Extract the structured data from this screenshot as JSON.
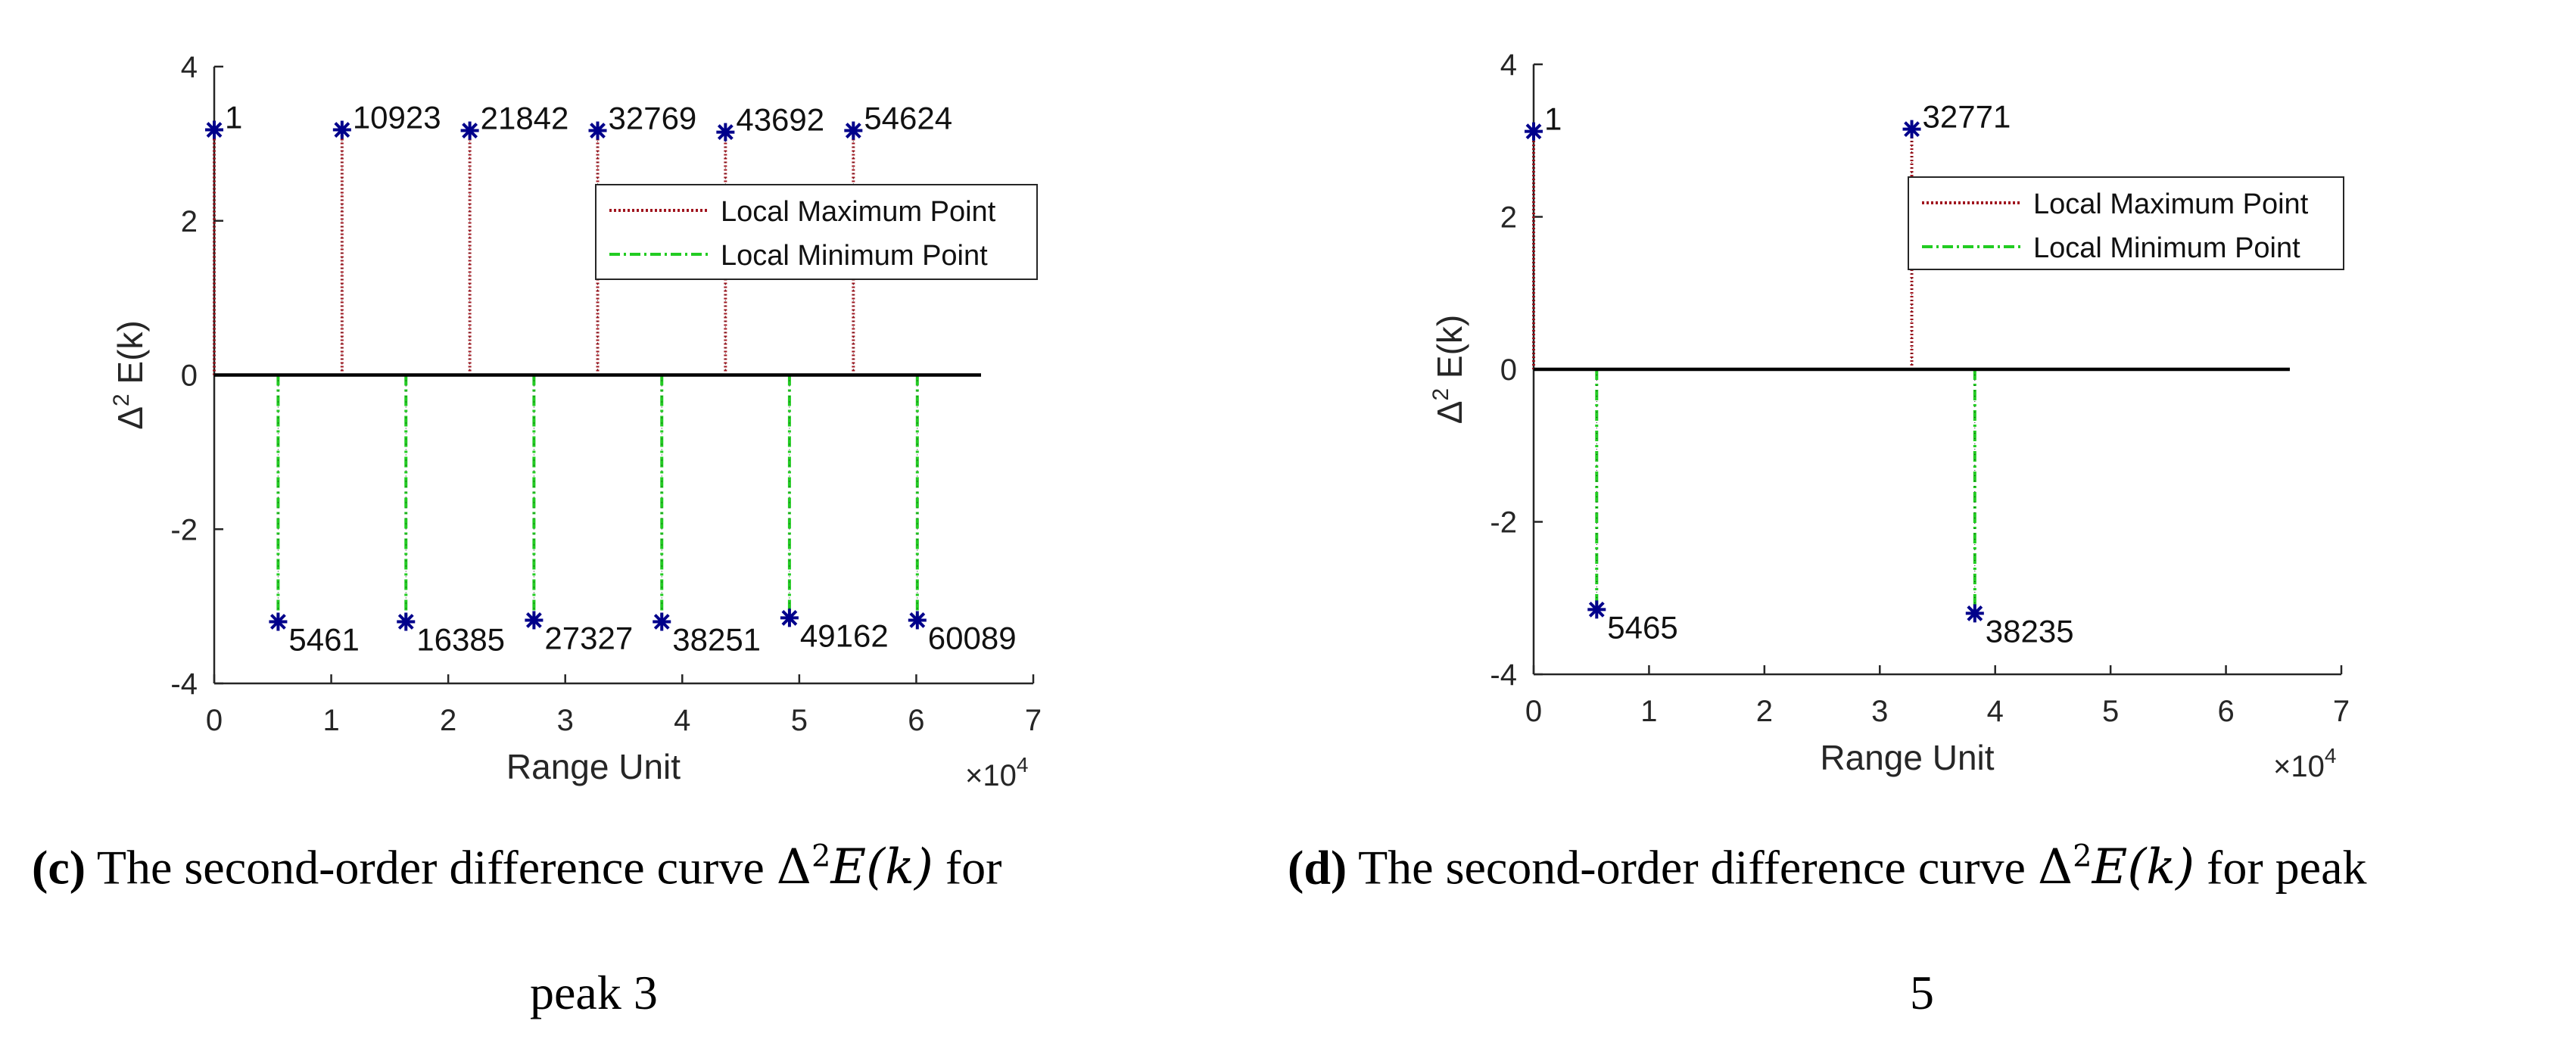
{
  "figures": [
    {
      "id": "c",
      "caption": {
        "letter": "(c)",
        "text": " The second-order difference curve ",
        "math_symbol": "Δ",
        "math_exp": "2",
        "math_func": "E(k)",
        "suffix_line1": " for",
        "line2": "peak 3"
      }
    },
    {
      "id": "d",
      "caption": {
        "letter": "(d)",
        "text": " The second-order difference curve ",
        "math_symbol": "Δ",
        "math_exp": "2",
        "math_func": "E(k)",
        "suffix_line1": " for peak",
        "line2": "5"
      }
    }
  ],
  "chart_data": [
    {
      "type": "stem",
      "xlabel": "Range Unit",
      "ylabel_symbol": "Δ",
      "ylabel_exp": "2",
      "ylabel_text": "E(k)",
      "x_multiplier": "×10",
      "x_multiplier_exp": "4",
      "xlim": [
        0,
        70000
      ],
      "ylim": [
        -4,
        4
      ],
      "x_ticks": [
        0,
        1,
        2,
        3,
        4,
        5,
        6,
        7
      ],
      "y_ticks": [
        4,
        2,
        0,
        -2,
        -4
      ],
      "baseline": [
        0,
        65536
      ],
      "legend": {
        "placement": "right",
        "entries": [
          "Local Maximum Point",
          "Local Minimum Point"
        ]
      },
      "series": [
        {
          "name": "Local Maximum Point",
          "color": "#a0141e",
          "style": "dotted",
          "x": [
            1,
            10923,
            21842,
            32769,
            43692,
            54624
          ],
          "y": [
            3.18,
            3.18,
            3.17,
            3.17,
            3.15,
            3.17
          ],
          "labels": [
            "1",
            "10923",
            "21842",
            "32769",
            "43692",
            "54624"
          ]
        },
        {
          "name": "Local Minimum Point",
          "color": "#22cc22",
          "style": "dashdot",
          "x": [
            5461,
            16385,
            27327,
            38251,
            49162,
            60089
          ],
          "y": [
            -3.2,
            -3.2,
            -3.18,
            -3.2,
            -3.15,
            -3.18
          ],
          "labels": [
            "5461",
            "16385",
            "27327",
            "38251",
            "49162",
            "60089"
          ]
        }
      ],
      "marker_color": "#00008b"
    },
    {
      "type": "stem",
      "xlabel": "Range Unit",
      "ylabel_symbol": "Δ",
      "ylabel_exp": "2",
      "ylabel_text": "E(k)",
      "x_multiplier": "×10",
      "x_multiplier_exp": "4",
      "xlim": [
        0,
        70000
      ],
      "ylim": [
        -4,
        4
      ],
      "x_ticks": [
        0,
        1,
        2,
        3,
        4,
        5,
        6,
        7
      ],
      "y_ticks": [
        4,
        2,
        0,
        -2,
        -4
      ],
      "baseline": [
        0,
        65536
      ],
      "legend": {
        "placement": "right",
        "entries": [
          "Local Maximum Point",
          "Local Minimum Point"
        ]
      },
      "series": [
        {
          "name": "Local Maximum Point",
          "color": "#a0141e",
          "style": "dotted",
          "x": [
            1,
            32771
          ],
          "y": [
            3.12,
            3.15
          ],
          "labels": [
            "1",
            "32771"
          ]
        },
        {
          "name": "Local Minimum Point",
          "color": "#22cc22",
          "style": "dashdot",
          "x": [
            5465,
            38235
          ],
          "y": [
            -3.15,
            -3.2
          ],
          "labels": [
            "5465",
            "38235"
          ]
        }
      ],
      "marker_color": "#00008b"
    }
  ]
}
